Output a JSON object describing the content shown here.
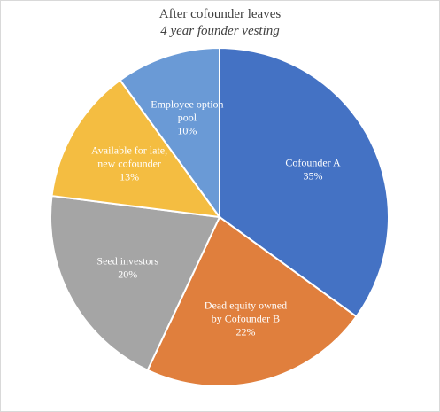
{
  "chart_data": {
    "type": "pie",
    "title": "After cofounder leaves",
    "subtitle": "4 year founder vesting",
    "slices": [
      {
        "label_lines": [
          "Cofounder A"
        ],
        "percent_label": "35%",
        "value": 35,
        "color": "#4472c4"
      },
      {
        "label_lines": [
          "Dead equity owned",
          "by Cofounder B"
        ],
        "percent_label": "22%",
        "value": 22,
        "color": "#e07f3d"
      },
      {
        "label_lines": [
          "Seed investors"
        ],
        "percent_label": "20%",
        "value": 20,
        "color": "#a5a5a5"
      },
      {
        "label_lines": [
          "Available for late,",
          "new cofounder"
        ],
        "percent_label": "13%",
        "value": 13,
        "color": "#f4bd41"
      },
      {
        "label_lines": [
          "Employee option",
          "pool"
        ],
        "percent_label": "10%",
        "value": 10,
        "color": "#6a9ad6"
      }
    ],
    "start_angle_deg": 0,
    "direction": "clockwise",
    "legend": "none",
    "slice_border_color": "#ffffff"
  }
}
